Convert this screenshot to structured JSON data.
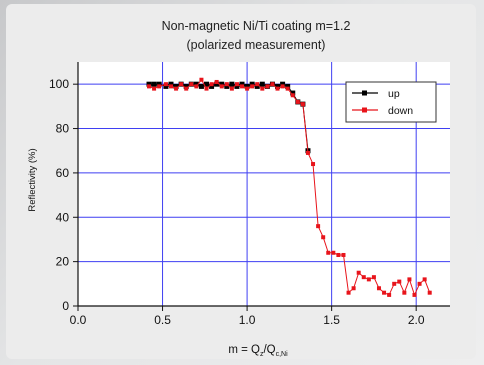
{
  "chart_data": {
    "type": "line",
    "title": "Non-magnetic Ni/Ti coating m=1.2",
    "subtitle": "(polarized measurement)",
    "ylabel": "Reflectivity (%)",
    "xlabel_parts": {
      "main": "m = Q",
      "sub1": "z",
      "mid": "/Q",
      "sub2": "c,Ni"
    },
    "xlim": [
      0.0,
      2.2
    ],
    "ylim": [
      0,
      110
    ],
    "xticks": [
      0.0,
      0.5,
      1.0,
      1.5,
      2.0
    ],
    "xtick_labels": [
      "0.0",
      "0.5",
      "1.0",
      "1.5",
      "2.0"
    ],
    "yticks": [
      0,
      20,
      40,
      60,
      80,
      100
    ],
    "ytick_labels": [
      "0",
      "20",
      "40",
      "60",
      "80",
      "100"
    ],
    "grid": true,
    "legend_position": "top-right",
    "series": [
      {
        "name": "up",
        "color": "#000000",
        "x": [
          0.42,
          0.45,
          0.48,
          0.52,
          0.55,
          0.58,
          0.61,
          0.64,
          0.67,
          0.7,
          0.73,
          0.76,
          0.79,
          0.82,
          0.85,
          0.88,
          0.91,
          0.94,
          0.97,
          1.0,
          1.03,
          1.06,
          1.09,
          1.12,
          1.15,
          1.18,
          1.21,
          1.24,
          1.27,
          1.3,
          1.33,
          1.36
        ],
        "y": [
          100,
          100,
          100,
          99,
          100,
          99,
          100,
          99,
          100,
          100,
          99,
          100,
          99,
          100,
          100,
          99,
          100,
          99,
          100,
          99,
          100,
          99,
          100,
          99,
          100,
          99,
          100,
          99,
          96,
          92,
          91,
          70
        ]
      },
      {
        "name": "down",
        "color": "#e8141b",
        "x": [
          0.42,
          0.45,
          0.48,
          0.52,
          0.55,
          0.58,
          0.61,
          0.64,
          0.67,
          0.7,
          0.73,
          0.76,
          0.79,
          0.82,
          0.85,
          0.88,
          0.91,
          0.94,
          0.97,
          1.0,
          1.03,
          1.06,
          1.09,
          1.12,
          1.15,
          1.18,
          1.21,
          1.24,
          1.27,
          1.3,
          1.33,
          1.36,
          1.39,
          1.42,
          1.45,
          1.48,
          1.51,
          1.54,
          1.57,
          1.6,
          1.63,
          1.66,
          1.69,
          1.72,
          1.75,
          1.78,
          1.81,
          1.84,
          1.87,
          1.9,
          1.93,
          1.96,
          1.99,
          2.02,
          2.05,
          2.08
        ],
        "y": [
          99,
          98,
          99,
          100,
          99,
          98,
          100,
          98,
          100,
          99,
          102,
          98,
          100,
          101,
          99,
          100,
          98,
          100,
          99,
          98,
          99,
          100,
          98,
          99,
          100,
          98,
          99,
          98,
          95,
          92,
          91,
          69,
          64,
          36,
          31,
          24,
          24,
          23,
          23,
          6,
          8,
          15,
          13,
          12,
          13,
          8,
          6,
          5,
          10,
          11,
          6,
          12,
          5,
          10,
          12,
          6
        ]
      }
    ]
  }
}
